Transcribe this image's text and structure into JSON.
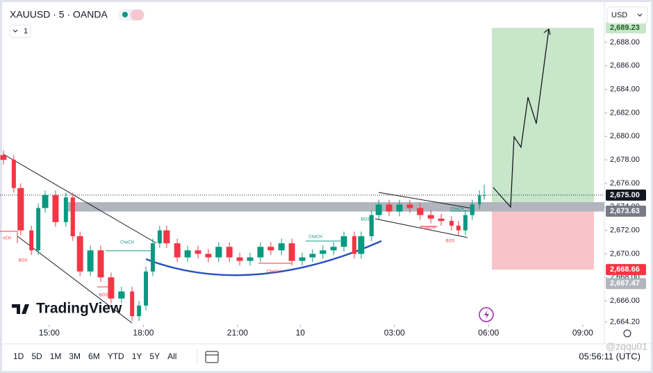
{
  "header": {
    "symbol": "XAUUSD · 5 · OANDA",
    "indicator_count": "1",
    "currency": "USD"
  },
  "chart_data": {
    "type": "candlestick",
    "x": [
      13.54,
      13.87,
      14.09,
      14.43,
      14.65,
      14.87,
      15.2,
      15.53,
      15.75,
      15.98,
      16.31,
      16.64,
      16.97,
      17.3,
      17.64,
      17.86,
      18.08,
      18.3,
      18.52,
      18.74,
      19.08,
      19.41,
      19.74,
      20.07,
      20.4,
      20.74,
      21.07,
      21.4,
      21.73,
      22.06,
      22.4,
      22.73,
      23.06,
      23.39,
      23.72,
      24.06,
      24.39,
      24.72,
      24.94,
      25.27,
      25.5,
      25.83,
      26.16,
      26.49,
      26.82,
      27.16,
      27.49,
      27.82,
      28.04,
      28.26,
      28.48,
      28.71,
      28.86
    ],
    "open": [
      2678.4,
      2678.0,
      2675.6,
      2672.0,
      2670.3,
      2673.9,
      2675.0,
      2672.7,
      2674.8,
      2671.5,
      2668.5,
      2670.3,
      2668.0,
      2666.2,
      2666.8,
      2664.7,
      2665.6,
      2668.5,
      2670.9,
      2672.0,
      2670.9,
      2669.7,
      2670.3,
      2670.0,
      2669.7,
      2670.6,
      2669.7,
      2669.4,
      2669.7,
      2670.6,
      2670.3,
      2670.9,
      2669.4,
      2669.7,
      2670.0,
      2670.3,
      2670.6,
      2671.5,
      2670.0,
      2671.5,
      2673.3,
      2674.2,
      2673.6,
      2674.2,
      2673.9,
      2673.3,
      2673.0,
      2672.8,
      2672.4,
      2672.0,
      2673.3,
      2674.2,
      2675.0
    ],
    "high": [
      2678.8,
      2678.4,
      2676.0,
      2672.4,
      2674.3,
      2675.4,
      2675.4,
      2675.2,
      2675.2,
      2671.9,
      2670.7,
      2670.7,
      2668.4,
      2667.2,
      2667.2,
      2666.0,
      2668.9,
      2671.3,
      2672.4,
      2672.4,
      2671.3,
      2670.7,
      2670.7,
      2670.4,
      2671.0,
      2671.0,
      2670.1,
      2670.1,
      2671.0,
      2671.0,
      2671.3,
      2671.3,
      2670.1,
      2670.4,
      2670.7,
      2671.0,
      2671.9,
      2671.9,
      2671.9,
      2673.7,
      2674.6,
      2674.6,
      2674.6,
      2674.6,
      2674.3,
      2673.7,
      2673.4,
      2673.2,
      2672.8,
      2673.7,
      2674.6,
      2675.4,
      2675.9
    ],
    "low": [
      2677.6,
      2675.2,
      2671.6,
      2669.9,
      2669.9,
      2673.5,
      2672.3,
      2672.3,
      2671.1,
      2668.1,
      2668.1,
      2667.6,
      2665.8,
      2665.8,
      2664.3,
      2664.3,
      2665.2,
      2668.1,
      2670.5,
      2670.5,
      2669.3,
      2669.3,
      2669.6,
      2669.3,
      2669.3,
      2669.3,
      2669.0,
      2669.0,
      2669.3,
      2669.9,
      2669.9,
      2669.0,
      2669.0,
      2669.3,
      2669.6,
      2669.9,
      2670.2,
      2669.6,
      2669.6,
      2671.1,
      2672.9,
      2673.2,
      2673.2,
      2673.5,
      2672.9,
      2672.6,
      2672.4,
      2672.0,
      2671.6,
      2671.6,
      2672.9,
      2673.8,
      2674.6
    ],
    "close": [
      2678.0,
      2675.6,
      2672.0,
      2670.3,
      2673.9,
      2675.0,
      2672.7,
      2674.8,
      2671.5,
      2668.5,
      2670.3,
      2668.0,
      2666.2,
      2666.8,
      2664.7,
      2665.6,
      2668.5,
      2670.9,
      2672.0,
      2670.9,
      2669.7,
      2670.3,
      2670.0,
      2669.7,
      2670.6,
      2669.7,
      2669.4,
      2669.7,
      2670.6,
      2670.3,
      2670.9,
      2669.4,
      2669.7,
      2670.0,
      2670.3,
      2670.6,
      2671.5,
      2670.0,
      2671.5,
      2673.3,
      2674.2,
      2673.6,
      2674.2,
      2673.9,
      2673.3,
      2673.0,
      2672.8,
      2672.4,
      2672.0,
      2673.3,
      2674.2,
      2675.0,
      2675.0
    ],
    "up_color": "#089981",
    "down_color": "#f23645",
    "xlim": [
      13.43,
      32.69
    ],
    "xticks": [
      {
        "value": 15,
        "label": "15:00"
      },
      {
        "value": 18,
        "label": "18:00"
      },
      {
        "value": 21,
        "label": "21:00"
      },
      {
        "value": 23,
        "label": "10"
      },
      {
        "value": 26,
        "label": "03:00"
      },
      {
        "value": 29,
        "label": "06:00"
      },
      {
        "value": 32,
        "label": "09:00"
      }
    ],
    "ylim": [
      2664.0,
      2691.6
    ],
    "yticks": [
      {
        "value": 2664.2,
        "label": "2,664.20"
      },
      {
        "value": 2666,
        "label": "2,666.00"
      },
      {
        "value": 2668,
        "label": "2,668.00"
      },
      {
        "value": 2670,
        "label": "2,670.00"
      },
      {
        "value": 2672,
        "label": "2,672.00"
      },
      {
        "value": 2674,
        "label": "2,674.00"
      },
      {
        "value": 2676,
        "label": "2,676.00"
      },
      {
        "value": 2678,
        "label": "2,678.00"
      },
      {
        "value": 2680,
        "label": "2,680.00"
      },
      {
        "value": 2682,
        "label": "2,682.00"
      },
      {
        "value": 2684,
        "label": "2,684.00"
      },
      {
        "value": 2686,
        "label": "2,686.00"
      },
      {
        "value": 2688,
        "label": "2,688.00"
      }
    ],
    "price_labels": [
      {
        "value": 2689.23,
        "label": "2,689.23",
        "color": "#c8e6c9",
        "text_color": "#1b5e20"
      },
      {
        "value": 2675.0,
        "label": "2,675.00",
        "color": "#131722",
        "text_color": "#ffffff"
      },
      {
        "value": 2673.63,
        "label": "2,673.63",
        "color": "#787b86",
        "text_color": "#ffffff"
      },
      {
        "value": 2668.66,
        "label": "2,668.66",
        "color": "#f23645",
        "text_color": "#ffffff"
      },
      {
        "value": 2667.47,
        "label": "2,667.47",
        "color": "#b2b5be",
        "text_color": "#ffffff"
      }
    ],
    "zone": [
      2673.6,
      2674.4
    ],
    "annotations": [
      "oCH",
      "BOS",
      "ChoCH",
      "BOS",
      "ChoCH",
      "ChoCH",
      "BOS",
      "ChoCH",
      "BOS",
      "ChoCH"
    ]
  },
  "watermark": "TradingView",
  "range_buttons": [
    "1D",
    "5D",
    "1M",
    "3M",
    "6M",
    "YTD",
    "1Y",
    "5Y",
    "All"
  ],
  "clock": "05:56:11 (UTC)",
  "credit": "@zqqu01"
}
